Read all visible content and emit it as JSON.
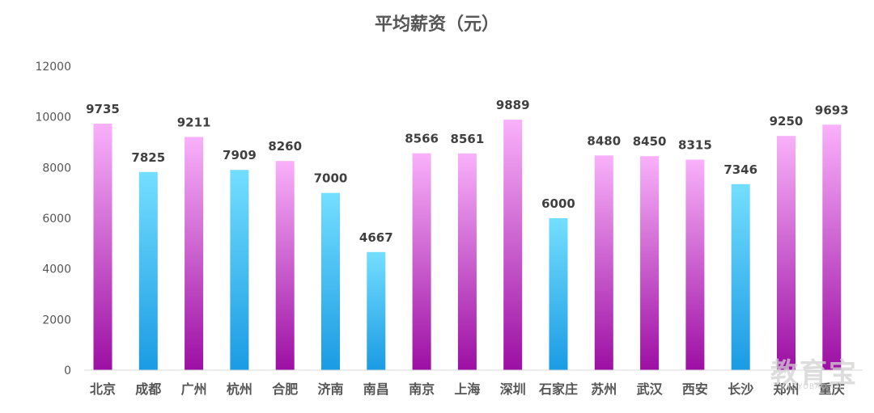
{
  "chart_data": {
    "type": "bar",
    "title": "平均薪资（元）",
    "xlabel": "",
    "ylabel": "",
    "ylim": [
      0,
      12000
    ],
    "yticks": [
      0,
      2000,
      4000,
      6000,
      8000,
      10000,
      12000
    ],
    "grid": false,
    "legend": "none",
    "categories": [
      "北京",
      "成都",
      "广州",
      "杭州",
      "合肥",
      "济南",
      "南昌",
      "南京",
      "上海",
      "深圳",
      "石家庄",
      "苏州",
      "武汉",
      "西安",
      "长沙",
      "郑州",
      "重庆"
    ],
    "values": [
      9735,
      7825,
      9211,
      7909,
      8260,
      7000,
      4667,
      8566,
      8561,
      9889,
      6000,
      8480,
      8450,
      8315,
      7346,
      9250,
      9693
    ],
    "bar_styles": [
      "magenta",
      "blue",
      "magenta",
      "blue",
      "magenta",
      "blue",
      "blue",
      "magenta",
      "magenta",
      "magenta",
      "blue",
      "magenta",
      "magenta",
      "magenta",
      "blue",
      "magenta",
      "magenta"
    ],
    "colors": {
      "magenta_top": "#F9B1FA",
      "magenta_bottom": "#9C0FA3",
      "blue_top": "#74DEFF",
      "blue_bottom": "#1A9BE3",
      "label": "#404040",
      "axis_text": "#555555"
    }
  },
  "watermark": {
    "main": "教育宝",
    "sub": "JIAOYUBAO.CN"
  }
}
